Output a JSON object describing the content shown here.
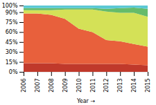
{
  "chart_data": {
    "type": "area",
    "stacked": true,
    "xlabel": "Year",
    "x": [
      2006,
      2007,
      2008,
      2009,
      2010,
      2011,
      2012,
      2013,
      2014,
      2015
    ],
    "xlim": [
      2006,
      2015
    ],
    "xticks": [
      2006,
      2007,
      2008,
      2009,
      2010,
      2011,
      2012,
      2013,
      2014,
      2015
    ],
    "ylim": [
      0,
      100
    ],
    "yticks": [
      {
        "value": 0,
        "label": "0%"
      },
      {
        "value": 15,
        "label": "15%"
      },
      {
        "value": 30,
        "label": "30%"
      },
      {
        "value": 45,
        "label": "45%"
      },
      {
        "value": 60,
        "label": "60%"
      },
      {
        "value": 75,
        "label": "75%"
      },
      {
        "value": 90,
        "label": "90%"
      },
      {
        "value": 100,
        "label": "100%"
      }
    ],
    "grid": true,
    "series": [
      {
        "color": "#c0392b",
        "values": [
          13,
          13,
          13,
          12,
          12,
          12,
          12,
          12,
          11,
          10
        ]
      },
      {
        "color": "#e8603c",
        "values": [
          75,
          75,
          73,
          68,
          53,
          48,
          36,
          34,
          31,
          28
        ]
      },
      {
        "color": "#d4e157",
        "values": [
          5,
          5,
          7,
          14,
          29,
          34,
          43,
          43,
          47,
          45
        ]
      },
      {
        "color": "#66bb6a",
        "values": [
          3,
          3,
          3,
          2,
          2,
          2,
          4,
          7,
          8,
          12
        ]
      },
      {
        "color": "#5bc8d4",
        "values": [
          4,
          4,
          4,
          4,
          4,
          4,
          5,
          4,
          3,
          5
        ]
      }
    ]
  }
}
